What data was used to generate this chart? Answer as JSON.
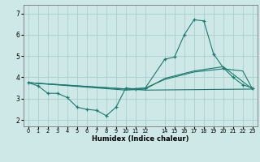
{
  "xlabel": "Humidex (Indice chaleur)",
  "bg_color": "#cde8e6",
  "grid_color": "#aacfcd",
  "line_color": "#1a7a6e",
  "ylim": [
    1.7,
    7.4
  ],
  "xlim": [
    -0.5,
    23.5
  ],
  "yticks": [
    2,
    3,
    4,
    5,
    6,
    7
  ],
  "xtick_positions": [
    0,
    1,
    2,
    3,
    4,
    5,
    6,
    7,
    8,
    9,
    10,
    11,
    12,
    14,
    15,
    16,
    17,
    18,
    19,
    20,
    21,
    22,
    23
  ],
  "xtick_labels": [
    "0",
    "1",
    "2",
    "3",
    "4",
    "5",
    "6",
    "7",
    "8",
    "9",
    "10",
    "11",
    "12",
    "14",
    "15",
    "16",
    "17",
    "18",
    "19",
    "20",
    "21",
    "22",
    "23"
  ],
  "series1_x": [
    0,
    1,
    2,
    3,
    4,
    5,
    6,
    7,
    8,
    9,
    10,
    11,
    12,
    14,
    15,
    16,
    17,
    18,
    19,
    20,
    21,
    22,
    23
  ],
  "series1_y": [
    3.75,
    3.6,
    3.25,
    3.25,
    3.05,
    2.6,
    2.5,
    2.45,
    2.2,
    2.6,
    3.5,
    3.45,
    3.5,
    4.85,
    4.95,
    6.0,
    6.7,
    6.65,
    5.1,
    4.45,
    4.0,
    3.65,
    3.5
  ],
  "series2_x": [
    0,
    12,
    23
  ],
  "series2_y": [
    3.75,
    3.4,
    3.45
  ],
  "series3_x": [
    0,
    10,
    12,
    14,
    17,
    19,
    20,
    22,
    23
  ],
  "series3_y": [
    3.75,
    3.45,
    3.5,
    3.9,
    4.25,
    4.35,
    4.4,
    4.3,
    3.45
  ],
  "series4_x": [
    0,
    10,
    12,
    14,
    17,
    20,
    23
  ],
  "series4_y": [
    3.75,
    3.4,
    3.45,
    3.95,
    4.3,
    4.5,
    3.45
  ]
}
